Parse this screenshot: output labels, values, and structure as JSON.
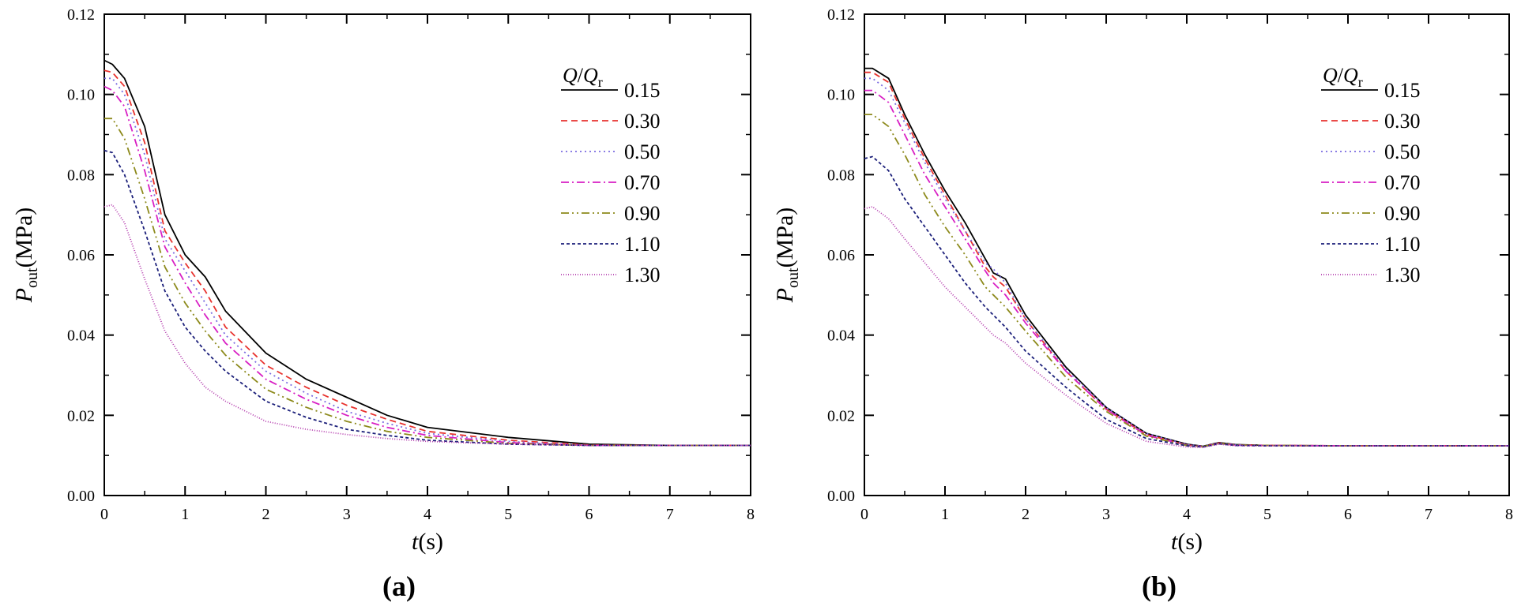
{
  "chart_data": [
    {
      "type": "line",
      "panel_label": "(a)",
      "xlabel_var": "t",
      "xlabel_unit": "(s)",
      "ylabel_var": "P",
      "ylabel_sub": "out",
      "ylabel_unit": "(MPa)",
      "xlim": [
        0,
        8
      ],
      "ylim": [
        0,
        0.12
      ],
      "xticks": [
        "0",
        "1",
        "2",
        "3",
        "4",
        "5",
        "6",
        "7",
        "8"
      ],
      "yticks": [
        "0.00",
        "0.02",
        "0.04",
        "0.06",
        "0.08",
        "0.10",
        "0.12"
      ],
      "legend_title_num": "Q",
      "legend_title_den": "Q",
      "legend_title_sub": "r",
      "legend_position": "top-right",
      "x": [
        0,
        0.1,
        0.25,
        0.5,
        0.75,
        1.0,
        1.25,
        1.5,
        2,
        2.5,
        3,
        3.5,
        4,
        5,
        6,
        7,
        8
      ],
      "series": [
        {
          "name": "0.15",
          "values": [
            0.1085,
            0.1075,
            0.104,
            0.092,
            0.07,
            0.06,
            0.0545,
            0.046,
            0.0355,
            0.029,
            0.0245,
            0.02,
            0.017,
            0.0145,
            0.0128,
            0.0125,
            0.0125
          ]
        },
        {
          "name": "0.30",
          "values": [
            0.106,
            0.1055,
            0.102,
            0.088,
            0.066,
            0.058,
            0.051,
            0.042,
            0.0325,
            0.027,
            0.0225,
            0.019,
            0.016,
            0.0138,
            0.0126,
            0.0125,
            0.0125
          ]
        },
        {
          "name": "0.50",
          "values": [
            0.104,
            0.104,
            0.1,
            0.085,
            0.064,
            0.056,
            0.048,
            0.04,
            0.031,
            0.0255,
            0.021,
            0.018,
            0.0155,
            0.0135,
            0.0125,
            0.0125,
            0.0125
          ]
        },
        {
          "name": "0.70",
          "values": [
            0.102,
            0.101,
            0.097,
            0.081,
            0.062,
            0.053,
            0.045,
            0.038,
            0.029,
            0.024,
            0.02,
            0.017,
            0.015,
            0.0132,
            0.0125,
            0.0125,
            0.0125
          ]
        },
        {
          "name": "0.90",
          "values": [
            0.094,
            0.094,
            0.089,
            0.074,
            0.057,
            0.048,
            0.041,
            0.035,
            0.0265,
            0.022,
            0.0185,
            0.016,
            0.0145,
            0.013,
            0.0125,
            0.0125,
            0.0125
          ]
        },
        {
          "name": "1.10",
          "values": [
            0.086,
            0.0855,
            0.08,
            0.066,
            0.051,
            0.042,
            0.036,
            0.031,
            0.0235,
            0.0195,
            0.0165,
            0.015,
            0.0138,
            0.0128,
            0.0125,
            0.0125,
            0.0125
          ]
        },
        {
          "name": "1.30",
          "values": [
            0.072,
            0.0725,
            0.068,
            0.054,
            0.041,
            0.033,
            0.027,
            0.0235,
            0.0185,
            0.0165,
            0.0152,
            0.0142,
            0.0135,
            0.0128,
            0.0125,
            0.0125,
            0.0125
          ]
        }
      ]
    },
    {
      "type": "line",
      "panel_label": "(b)",
      "xlabel_var": "t",
      "xlabel_unit": "(s)",
      "ylabel_var": "P",
      "ylabel_sub": "out",
      "ylabel_unit": "(MPa)",
      "xlim": [
        0,
        8
      ],
      "ylim": [
        0,
        0.12
      ],
      "xticks": [
        "0",
        "1",
        "2",
        "3",
        "4",
        "5",
        "6",
        "7",
        "8"
      ],
      "yticks": [
        "0.00",
        "0.02",
        "0.04",
        "0.06",
        "0.08",
        "0.10",
        "0.12"
      ],
      "legend_title_num": "Q",
      "legend_title_den": "Q",
      "legend_title_sub": "r",
      "legend_position": "top-right",
      "x": [
        0,
        0.1,
        0.3,
        0.5,
        0.75,
        1.0,
        1.25,
        1.5,
        1.6,
        1.75,
        2.0,
        2.5,
        3.0,
        3.5,
        4.0,
        4.2,
        4.4,
        4.6,
        5,
        6,
        7,
        8
      ],
      "series": [
        {
          "name": "0.15",
          "values": [
            0.1065,
            0.1065,
            0.104,
            0.095,
            0.085,
            0.076,
            0.068,
            0.059,
            0.0555,
            0.054,
            0.045,
            0.032,
            0.022,
            0.0155,
            0.0128,
            0.0123,
            0.0132,
            0.0127,
            0.0125,
            0.0124,
            0.0124,
            0.0124
          ]
        },
        {
          "name": "0.30",
          "values": [
            0.1055,
            0.1055,
            0.103,
            0.094,
            0.084,
            0.075,
            0.066,
            0.057,
            0.0545,
            0.052,
            0.044,
            0.031,
            0.0215,
            0.0152,
            0.0126,
            0.0122,
            0.0131,
            0.0126,
            0.0125,
            0.0124,
            0.0124,
            0.0124
          ]
        },
        {
          "name": "0.50",
          "values": [
            0.104,
            0.104,
            0.101,
            0.093,
            0.083,
            0.074,
            0.066,
            0.058,
            0.0565,
            0.053,
            0.044,
            0.0315,
            0.022,
            0.0155,
            0.0127,
            0.0123,
            0.0131,
            0.0126,
            0.0125,
            0.0124,
            0.0124,
            0.0124
          ]
        },
        {
          "name": "0.70",
          "values": [
            0.101,
            0.101,
            0.098,
            0.09,
            0.08,
            0.072,
            0.064,
            0.056,
            0.053,
            0.05,
            0.043,
            0.031,
            0.0215,
            0.015,
            0.0126,
            0.0122,
            0.013,
            0.0126,
            0.0125,
            0.0124,
            0.0124,
            0.0124
          ]
        },
        {
          "name": "0.90",
          "values": [
            0.095,
            0.095,
            0.092,
            0.085,
            0.075,
            0.067,
            0.06,
            0.052,
            0.05,
            0.047,
            0.041,
            0.0295,
            0.021,
            0.0148,
            0.0125,
            0.0122,
            0.013,
            0.0126,
            0.0125,
            0.0124,
            0.0124,
            0.0124
          ]
        },
        {
          "name": "1.10",
          "values": [
            0.084,
            0.0845,
            0.081,
            0.074,
            0.067,
            0.06,
            0.053,
            0.047,
            0.045,
            0.042,
            0.036,
            0.027,
            0.019,
            0.0142,
            0.0124,
            0.0121,
            0.0129,
            0.0125,
            0.0124,
            0.0124,
            0.0124,
            0.0124
          ]
        },
        {
          "name": "1.30",
          "values": [
            0.0715,
            0.072,
            0.069,
            0.064,
            0.058,
            0.052,
            0.047,
            0.042,
            0.04,
            0.038,
            0.033,
            0.025,
            0.018,
            0.0135,
            0.0121,
            0.012,
            0.0128,
            0.0124,
            0.0124,
            0.0124,
            0.0124,
            0.0124
          ]
        }
      ]
    }
  ],
  "series_styles": [
    {
      "color": "#000000",
      "dash": ""
    },
    {
      "color": "#e8322e",
      "dash": "8,5"
    },
    {
      "color": "#7b6be0",
      "dash": "2,4"
    },
    {
      "color": "#d81fc4",
      "dash": "10,4,2,4"
    },
    {
      "color": "#8d8a1c",
      "dash": "10,4,2,4,2,4"
    },
    {
      "color": "#1b1f7a",
      "dash": "4,3"
    },
    {
      "color": "#b43cae",
      "dash": "1,2"
    }
  ]
}
